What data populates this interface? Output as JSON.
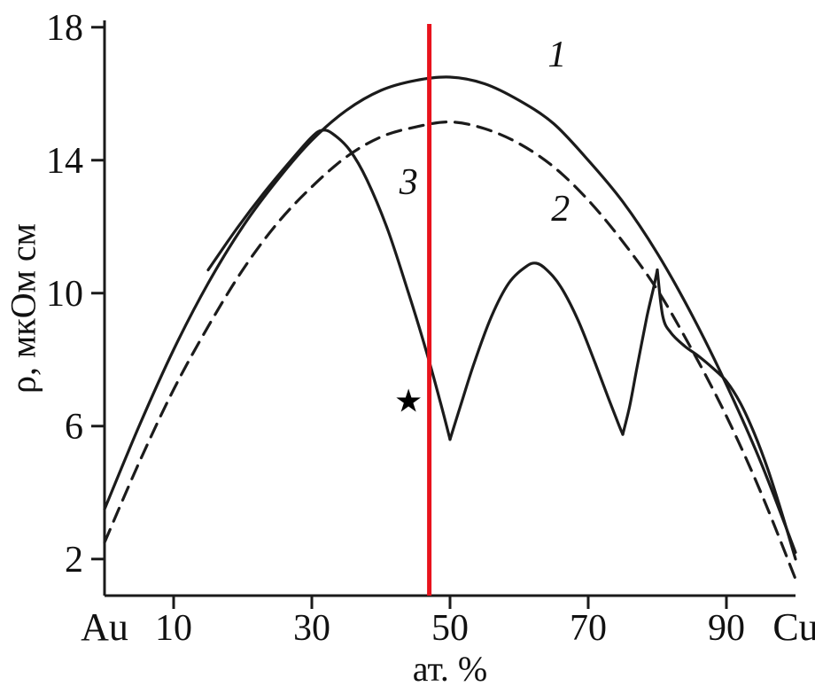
{
  "chart_data": {
    "type": "line",
    "title": "",
    "xlabel": "ат. %",
    "ylabel": "ρ, мкОм см",
    "xlim": [
      0,
      100
    ],
    "ylim": [
      0.9,
      18.1
    ],
    "grid": false,
    "axis_color": "#1a1a1a",
    "x_end_labels": {
      "left": "Au",
      "right": "Cu"
    },
    "x_ticks": {
      "values": [
        10,
        30,
        50,
        70,
        90
      ],
      "labels": [
        "10",
        "30",
        "50",
        "70",
        "90"
      ]
    },
    "y_ticks": {
      "values": [
        2,
        6,
        10,
        14,
        18
      ],
      "labels": [
        "2",
        "6",
        "10",
        "14",
        "18"
      ]
    },
    "series": [
      {
        "name": "1",
        "label": "1",
        "label_at": [
          65.5,
          17.2
        ],
        "line": "solid",
        "color": "#1b1b1b",
        "segments": [
          [
            [
              0,
              3.5
            ],
            [
              5,
              6.0
            ],
            [
              10,
              8.3
            ],
            [
              15,
              10.3
            ],
            [
              20,
              12.0
            ],
            [
              25,
              13.4
            ],
            [
              30,
              14.6
            ],
            [
              35,
              15.5
            ],
            [
              40,
              16.1
            ],
            [
              45,
              16.4
            ],
            [
              50,
              16.5
            ],
            [
              55,
              16.3
            ],
            [
              60,
              15.8
            ],
            [
              65,
              15.1
            ],
            [
              70,
              14.0
            ],
            [
              75,
              12.75
            ],
            [
              80,
              11.2
            ],
            [
              85,
              9.35
            ],
            [
              90,
              7.25
            ],
            [
              95,
              4.9
            ],
            [
              100,
              2.2
            ]
          ]
        ]
      },
      {
        "name": "2",
        "label": "2",
        "label_at": [
          66,
          12.55
        ],
        "line": "dashed",
        "color": "#1b1b1b",
        "segments": [
          [
            [
              0,
              2.5
            ],
            [
              5,
              4.9
            ],
            [
              10,
              7.1
            ],
            [
              15,
              9.0
            ],
            [
              20,
              10.7
            ],
            [
              25,
              12.1
            ],
            [
              30,
              13.2
            ],
            [
              35,
              14.1
            ],
            [
              40,
              14.7
            ],
            [
              45,
              15.0
            ],
            [
              50,
              15.15
            ],
            [
              55,
              14.95
            ],
            [
              60,
              14.5
            ],
            [
              65,
              13.8
            ],
            [
              70,
              12.8
            ],
            [
              75,
              11.55
            ],
            [
              80,
              10.1
            ],
            [
              85,
              8.3
            ],
            [
              90,
              6.3
            ],
            [
              95,
              4.0
            ],
            [
              100,
              1.4
            ]
          ]
        ]
      },
      {
        "name": "3",
        "label": "3",
        "label_at": [
          44,
          13.35
        ],
        "line": "solid",
        "color": "#1b1b1b",
        "segments": [
          [
            [
              15,
              10.7
            ],
            [
              19,
              11.9
            ],
            [
              23,
              13.0
            ],
            [
              27,
              14.0
            ],
            [
              30,
              14.7
            ],
            [
              31.5,
              14.9
            ],
            [
              33,
              14.8
            ],
            [
              35.5,
              14.3
            ],
            [
              38,
              13.4
            ],
            [
              41,
              11.9
            ],
            [
              44,
              10.0
            ],
            [
              46.5,
              8.3
            ],
            [
              48.5,
              6.8
            ],
            [
              50,
              5.6
            ]
          ],
          [
            [
              50,
              5.6
            ],
            [
              51.5,
              6.6
            ],
            [
              53.5,
              7.9
            ],
            [
              56,
              9.3
            ],
            [
              58.5,
              10.3
            ],
            [
              61,
              10.8
            ],
            [
              62.5,
              10.9
            ],
            [
              64,
              10.7
            ],
            [
              66,
              10.2
            ],
            [
              68.5,
              9.2
            ],
            [
              71,
              7.9
            ],
            [
              73,
              6.8
            ],
            [
              74.5,
              6.0
            ],
            [
              75,
              5.75
            ]
          ],
          [
            [
              75,
              5.75
            ],
            [
              76,
              6.6
            ],
            [
              77,
              7.7
            ],
            [
              78.5,
              9.3
            ],
            [
              79.5,
              10.2
            ],
            [
              80,
              10.7
            ]
          ],
          [
            [
              80,
              10.7
            ],
            [
              80.8,
              9.3
            ],
            [
              82,
              8.8
            ],
            [
              84,
              8.4
            ],
            [
              86,
              8.1
            ],
            [
              88,
              7.75
            ],
            [
              90,
              7.35
            ],
            [
              92,
              6.7
            ],
            [
              94,
              5.8
            ],
            [
              96,
              4.7
            ],
            [
              98,
              3.4
            ],
            [
              100,
              2.0
            ]
          ]
        ]
      }
    ],
    "annotations": [
      {
        "type": "vline",
        "name": "red-marker-line",
        "x": 47,
        "color": "#e8121c",
        "width": 5
      },
      {
        "type": "star",
        "name": "star-marker",
        "x": 44,
        "y": 6.75,
        "color": "#000000",
        "glyph": "★"
      }
    ]
  }
}
